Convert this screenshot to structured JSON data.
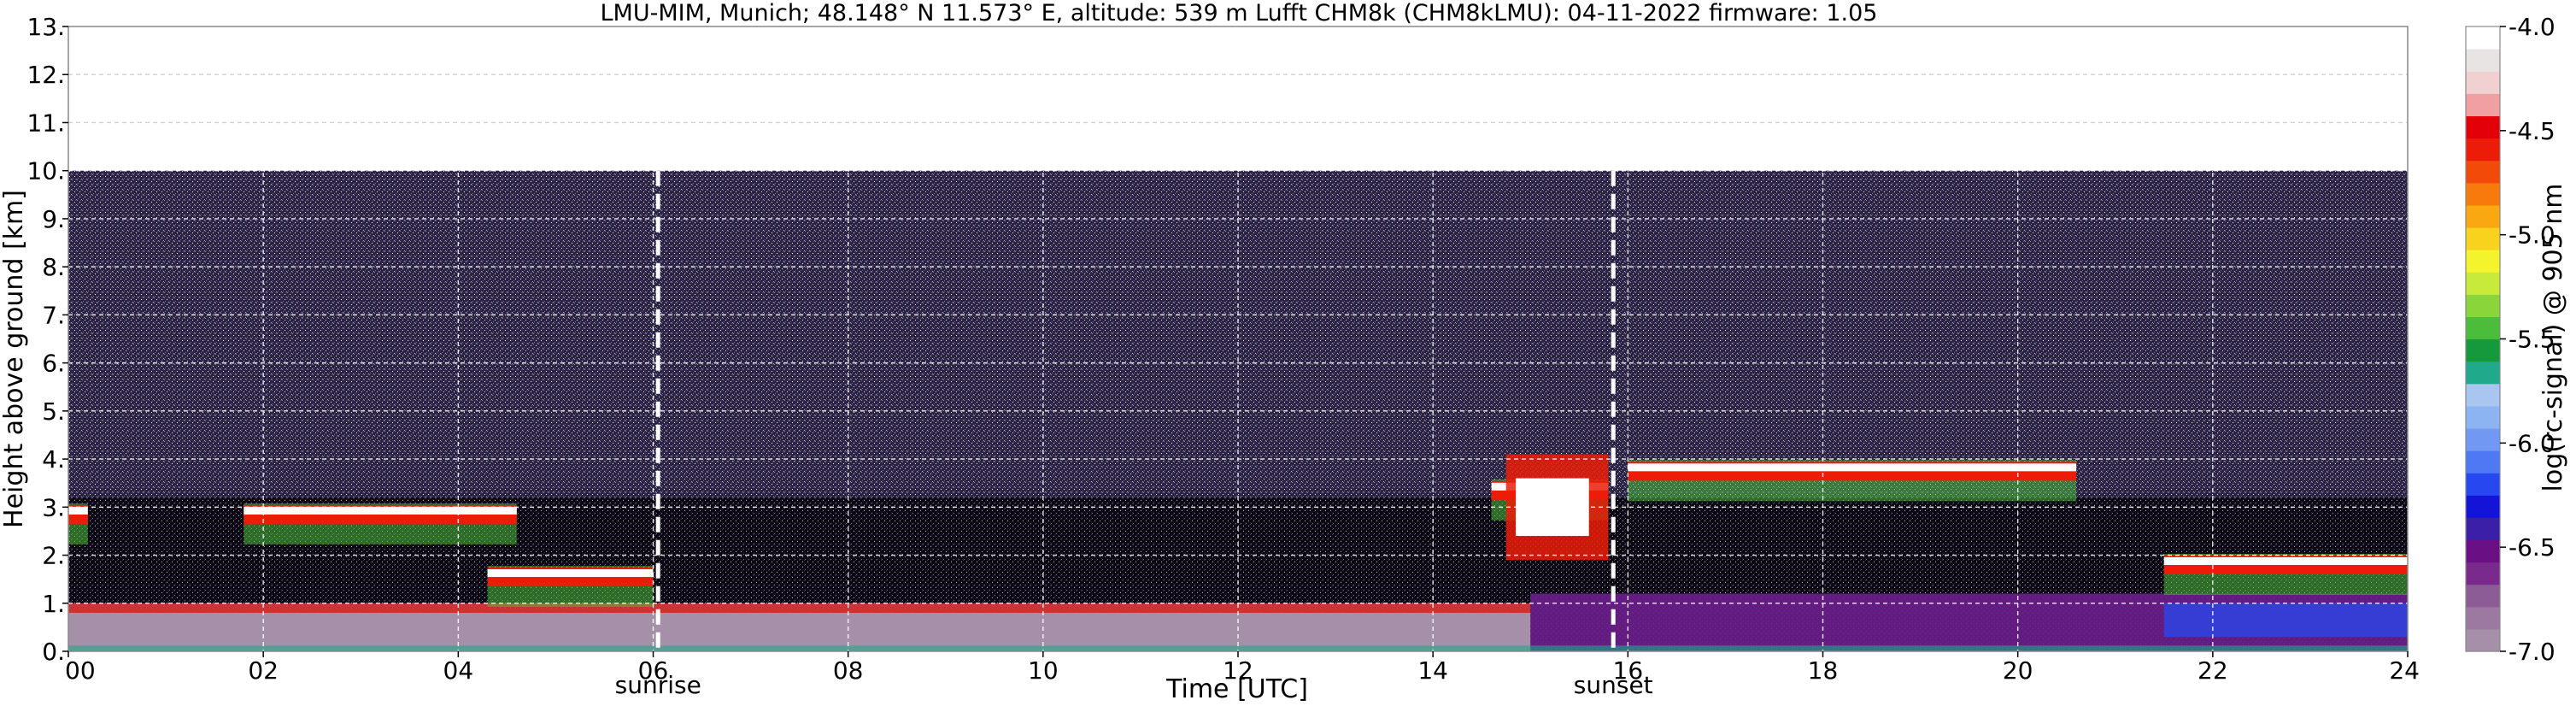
{
  "chart_data": {
    "type": "heatmap",
    "title": "LMU-MIM, Munich; 48.148° N 11.573° E, altitude: 539 m    Lufft CHM8k (CHM8kLMU): 04-11-2022    firmware: 1.05",
    "xlabel": "Time [UTC]",
    "ylabel": "Height above ground [km]",
    "xlim": [
      0,
      24
    ],
    "ylim": [
      0,
      13
    ],
    "x_ticks": [
      {
        "value": 0,
        "label": "00"
      },
      {
        "value": 2,
        "label": "02"
      },
      {
        "value": 4,
        "label": "04"
      },
      {
        "value": 6,
        "label": "06"
      },
      {
        "value": 8,
        "label": "08"
      },
      {
        "value": 10,
        "label": "10"
      },
      {
        "value": 12,
        "label": "12"
      },
      {
        "value": 14,
        "label": "14"
      },
      {
        "value": 16,
        "label": "16"
      },
      {
        "value": 18,
        "label": "18"
      },
      {
        "value": 20,
        "label": "20"
      },
      {
        "value": 22,
        "label": "22"
      },
      {
        "value": 24,
        "label": "24"
      }
    ],
    "y_ticks": [
      {
        "value": 0,
        "label": "0."
      },
      {
        "value": 1,
        "label": "1."
      },
      {
        "value": 2,
        "label": "2."
      },
      {
        "value": 3,
        "label": "3."
      },
      {
        "value": 4,
        "label": "4."
      },
      {
        "value": 5,
        "label": "5."
      },
      {
        "value": 6,
        "label": "6."
      },
      {
        "value": 7,
        "label": "7."
      },
      {
        "value": 8,
        "label": "8."
      },
      {
        "value": 9,
        "label": "9."
      },
      {
        "value": 10,
        "label": "10."
      },
      {
        "value": 11,
        "label": "11."
      },
      {
        "value": 12,
        "label": "12."
      },
      {
        "value": 13,
        "label": "13."
      }
    ],
    "grid": true,
    "data_ceiling_km": 10,
    "annotations": [
      {
        "label": "sunrise",
        "x": 6.05
      },
      {
        "label": "sunset",
        "x": 15.85
      }
    ],
    "colorbar": {
      "label": "log(rc-signal) @ 905 nm",
      "range": [
        -7.0,
        -4.0
      ],
      "ticks": [
        {
          "value": -4.0,
          "label": "-4.0"
        },
        {
          "value": -4.5,
          "label": "-4.5"
        },
        {
          "value": -5.0,
          "label": "-5.0"
        },
        {
          "value": -5.5,
          "label": "-5.5"
        },
        {
          "value": -6.0,
          "label": "-6.0"
        },
        {
          "value": -6.5,
          "label": "-6.5"
        },
        {
          "value": -7.0,
          "label": "-7.0"
        }
      ],
      "colors": [
        "#a58fa9",
        "#9c7aa0",
        "#8c5c97",
        "#7a2a8c",
        "#6b0f85",
        "#3b1fa8",
        "#1414d8",
        "#2748f0",
        "#4f78f5",
        "#7199f4",
        "#8db4f2",
        "#a9c6f0",
        "#1faa8c",
        "#149a3c",
        "#4bbd3b",
        "#8ad63a",
        "#c8ea3a",
        "#f4f42c",
        "#f8d21c",
        "#f9a812",
        "#f87a0c",
        "#f24a08",
        "#ec1c08",
        "#e40008",
        "#f0a0a0",
        "#f0d0d0",
        "#e9e4e4",
        "#ffffff"
      ]
    },
    "features": {
      "boundary_layer_base_km": 0.8,
      "cloud_layers": [
        {
          "start_h": 0.0,
          "end_h": 0.2,
          "height_km": 2.9
        },
        {
          "start_h": 1.8,
          "end_h": 4.6,
          "height_km": 2.9
        },
        {
          "start_h": 4.3,
          "end_h": 6.0,
          "height_km": 1.6
        },
        {
          "start_h": 14.6,
          "end_h": 15.8,
          "height_km": 3.4
        },
        {
          "start_h": 16.0,
          "end_h": 20.6,
          "height_km": 3.8
        },
        {
          "start_h": 21.5,
          "end_h": 24.0,
          "height_km": 1.85
        }
      ],
      "aerosol_layer_evening_km": 1.2
    }
  }
}
